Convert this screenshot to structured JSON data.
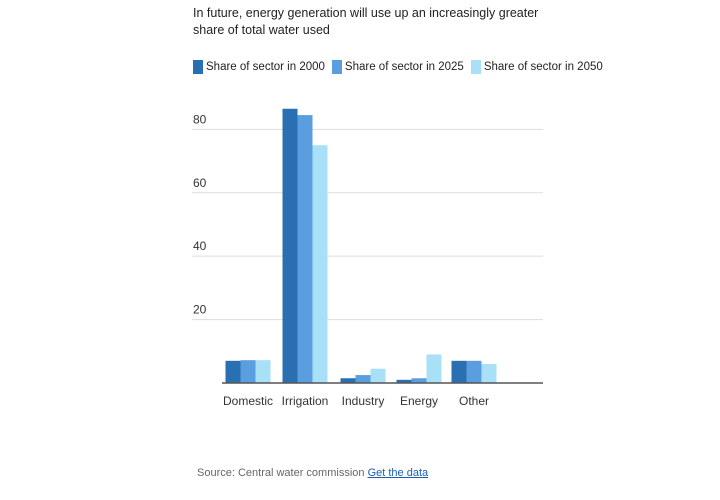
{
  "title": "In future, energy generation will use up an increasingly greater share of total water used",
  "colors": {
    "series_2000": "#2a6fb2",
    "series_2025": "#5a9ee0",
    "series_2050": "#a8e0f7",
    "grid": "#dddddd",
    "axis": "#555555"
  },
  "source": {
    "text": "Source: Central water commission",
    "link_label": "Get the data"
  },
  "chart_data": {
    "type": "bar",
    "title": "In future, energy generation will use up an increasingly greater share of total water used",
    "xlabel": "",
    "ylabel": "",
    "categories": [
      "Domestic",
      "Irrigation",
      "Industry",
      "Energy",
      "Other"
    ],
    "series": [
      {
        "name": "Share of sector in 2000",
        "values": [
          7,
          86.5,
          1.5,
          1,
          7
        ]
      },
      {
        "name": "Share of sector in 2025",
        "values": [
          7.2,
          84.5,
          2.5,
          1.5,
          7
        ]
      },
      {
        "name": "Share of sector in 2050",
        "values": [
          7.2,
          75,
          4.5,
          9,
          6
        ]
      }
    ],
    "yticks": [
      20,
      40,
      60,
      80
    ],
    "ylim": [
      0,
      88
    ],
    "grid": true,
    "legend_position": "top-left"
  }
}
